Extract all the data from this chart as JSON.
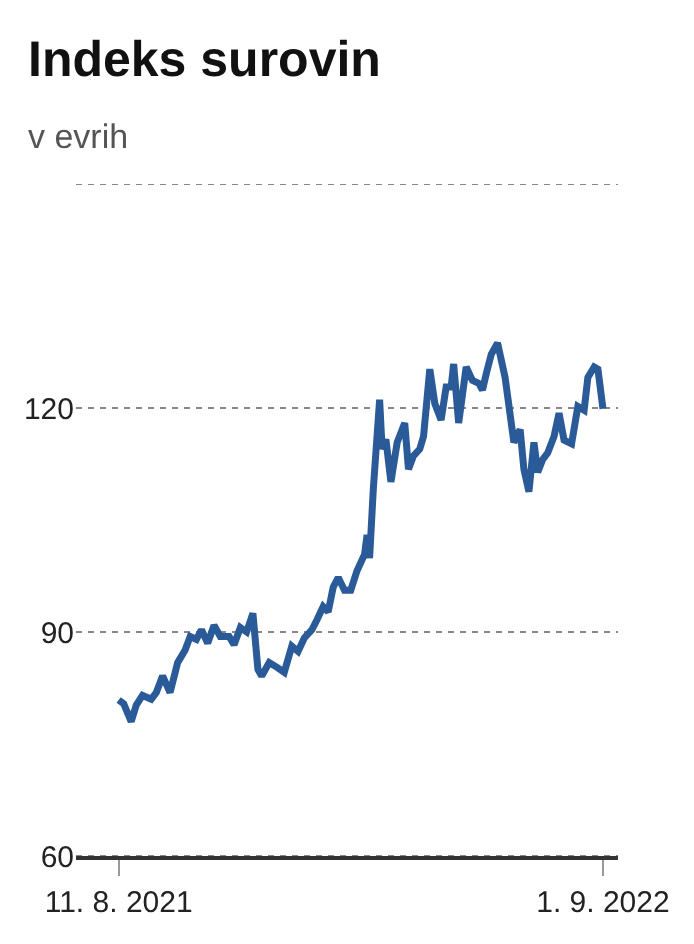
{
  "chart_data": {
    "type": "line",
    "title": "Indeks surovin",
    "subtitle": "v evrih",
    "x": [
      "2021-08-11",
      "2021-08-15",
      "2021-08-21",
      "2021-08-25",
      "2021-08-30",
      "2021-09-06",
      "2021-09-10",
      "2021-09-15",
      "2021-09-21",
      "2021-09-27",
      "2021-10-03",
      "2021-10-07",
      "2021-10-12",
      "2021-10-16",
      "2021-10-21",
      "2021-10-26",
      "2021-10-31",
      "2021-11-07",
      "2021-11-11",
      "2021-11-16",
      "2021-11-21",
      "2021-11-26",
      "2021-11-30",
      "2021-12-03",
      "2021-12-09",
      "2021-12-15",
      "2021-12-21",
      "2021-12-27",
      "2022-01-01",
      "2022-01-06",
      "2022-01-12",
      "2022-01-16",
      "2022-01-21",
      "2022-01-25",
      "2022-01-29",
      "2022-02-02",
      "2022-02-07",
      "2022-02-12",
      "2022-02-17",
      "2022-02-23",
      "2022-02-25",
      "2022-02-27",
      "2022-03-02",
      "2022-03-07",
      "2022-03-09",
      "2022-03-12",
      "2022-03-16",
      "2022-03-21",
      "2022-03-27",
      "2022-03-30",
      "2022-04-03",
      "2022-04-08",
      "2022-04-11",
      "2022-04-16",
      "2022-04-20",
      "2022-04-25",
      "2022-04-29",
      "2022-05-03",
      "2022-05-05",
      "2022-05-09",
      "2022-05-15",
      "2022-05-20",
      "2022-05-25",
      "2022-05-28",
      "2022-05-31",
      "2022-06-04",
      "2022-06-09",
      "2022-06-15",
      "2022-06-22",
      "2022-06-27",
      "2022-06-30",
      "2022-07-04",
      "2022-07-08",
      "2022-07-11",
      "2022-07-15",
      "2022-07-19",
      "2022-07-24",
      "2022-07-28",
      "2022-08-01",
      "2022-08-07",
      "2022-08-12",
      "2022-08-17",
      "2022-08-20",
      "2022-08-25",
      "2022-08-28",
      "2022-09-01"
    ],
    "series": [
      {
        "color": "#2a5a97",
        "values": [
          80.9,
          80.4,
          78.0,
          80.2,
          81.5,
          81.0,
          81.9,
          84.1,
          81.9,
          85.9,
          87.6,
          89.4,
          89.0,
          90.3,
          88.5,
          90.9,
          89.4,
          89.4,
          88.3,
          90.6,
          90.0,
          92.5,
          85.0,
          84.1,
          85.9,
          85.3,
          84.6,
          88.1,
          87.4,
          89.2,
          90.3,
          91.6,
          93.4,
          92.7,
          96.0,
          97.3,
          95.6,
          95.6,
          98.2,
          100.4,
          103.0,
          99.9,
          109.2,
          121.1,
          114.5,
          115.8,
          110.1,
          115.4,
          118.0,
          111.8,
          113.6,
          114.5,
          116.2,
          125.2,
          120.6,
          118.4,
          122.8,
          122.8,
          125.9,
          118.0,
          125.5,
          123.7,
          123.3,
          122.4,
          124.6,
          127.2,
          128.7,
          124.1,
          115.4,
          117.1,
          111.8,
          108.8,
          115.4,
          111.4,
          113.1,
          114.0,
          116.2,
          119.3,
          115.7,
          115.2,
          120.2,
          119.7,
          124.1,
          125.5,
          125.2,
          119.9
        ]
      }
    ],
    "xlim": [
      "2021-07-08",
      "2022-09-13"
    ],
    "xticks": [
      {
        "value": "2021-08-11",
        "label": "11. 8. 2021"
      },
      {
        "value": "2022-09-01",
        "label": "1. 9. 2022"
      }
    ],
    "ylim": [
      60,
      150
    ],
    "yticks": [
      60,
      90,
      120,
      {
        "value": 150,
        "label": null
      }
    ],
    "grid": "y",
    "marker": "none",
    "line_style": "solid"
  }
}
